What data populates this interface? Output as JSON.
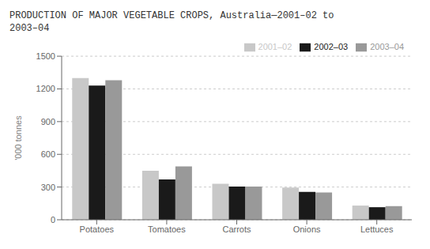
{
  "chart_data": {
    "type": "bar",
    "title": "PRODUCTION OF MAJOR VEGETABLE CROPS, Australia—2001–02 to\n2003–04",
    "ylabel": "'000 tonnes",
    "categories": [
      "Potatoes",
      "Tomatoes",
      "Carrots",
      "Onions",
      "Lettuces"
    ],
    "series": [
      {
        "name": "2001–02",
        "color": "#c8c8c8",
        "values": [
          1300,
          450,
          330,
          295,
          130
        ]
      },
      {
        "name": "2002–03",
        "color": "#1a1a1a",
        "values": [
          1230,
          370,
          305,
          255,
          115
        ]
      },
      {
        "name": "2003–04",
        "color": "#999999",
        "values": [
          1280,
          490,
          305,
          250,
          125
        ]
      }
    ],
    "ylim": [
      0,
      1500
    ],
    "yticks": [
      0,
      300,
      600,
      900,
      1200,
      1500
    ],
    "grid": true,
    "legend": "upper right"
  }
}
